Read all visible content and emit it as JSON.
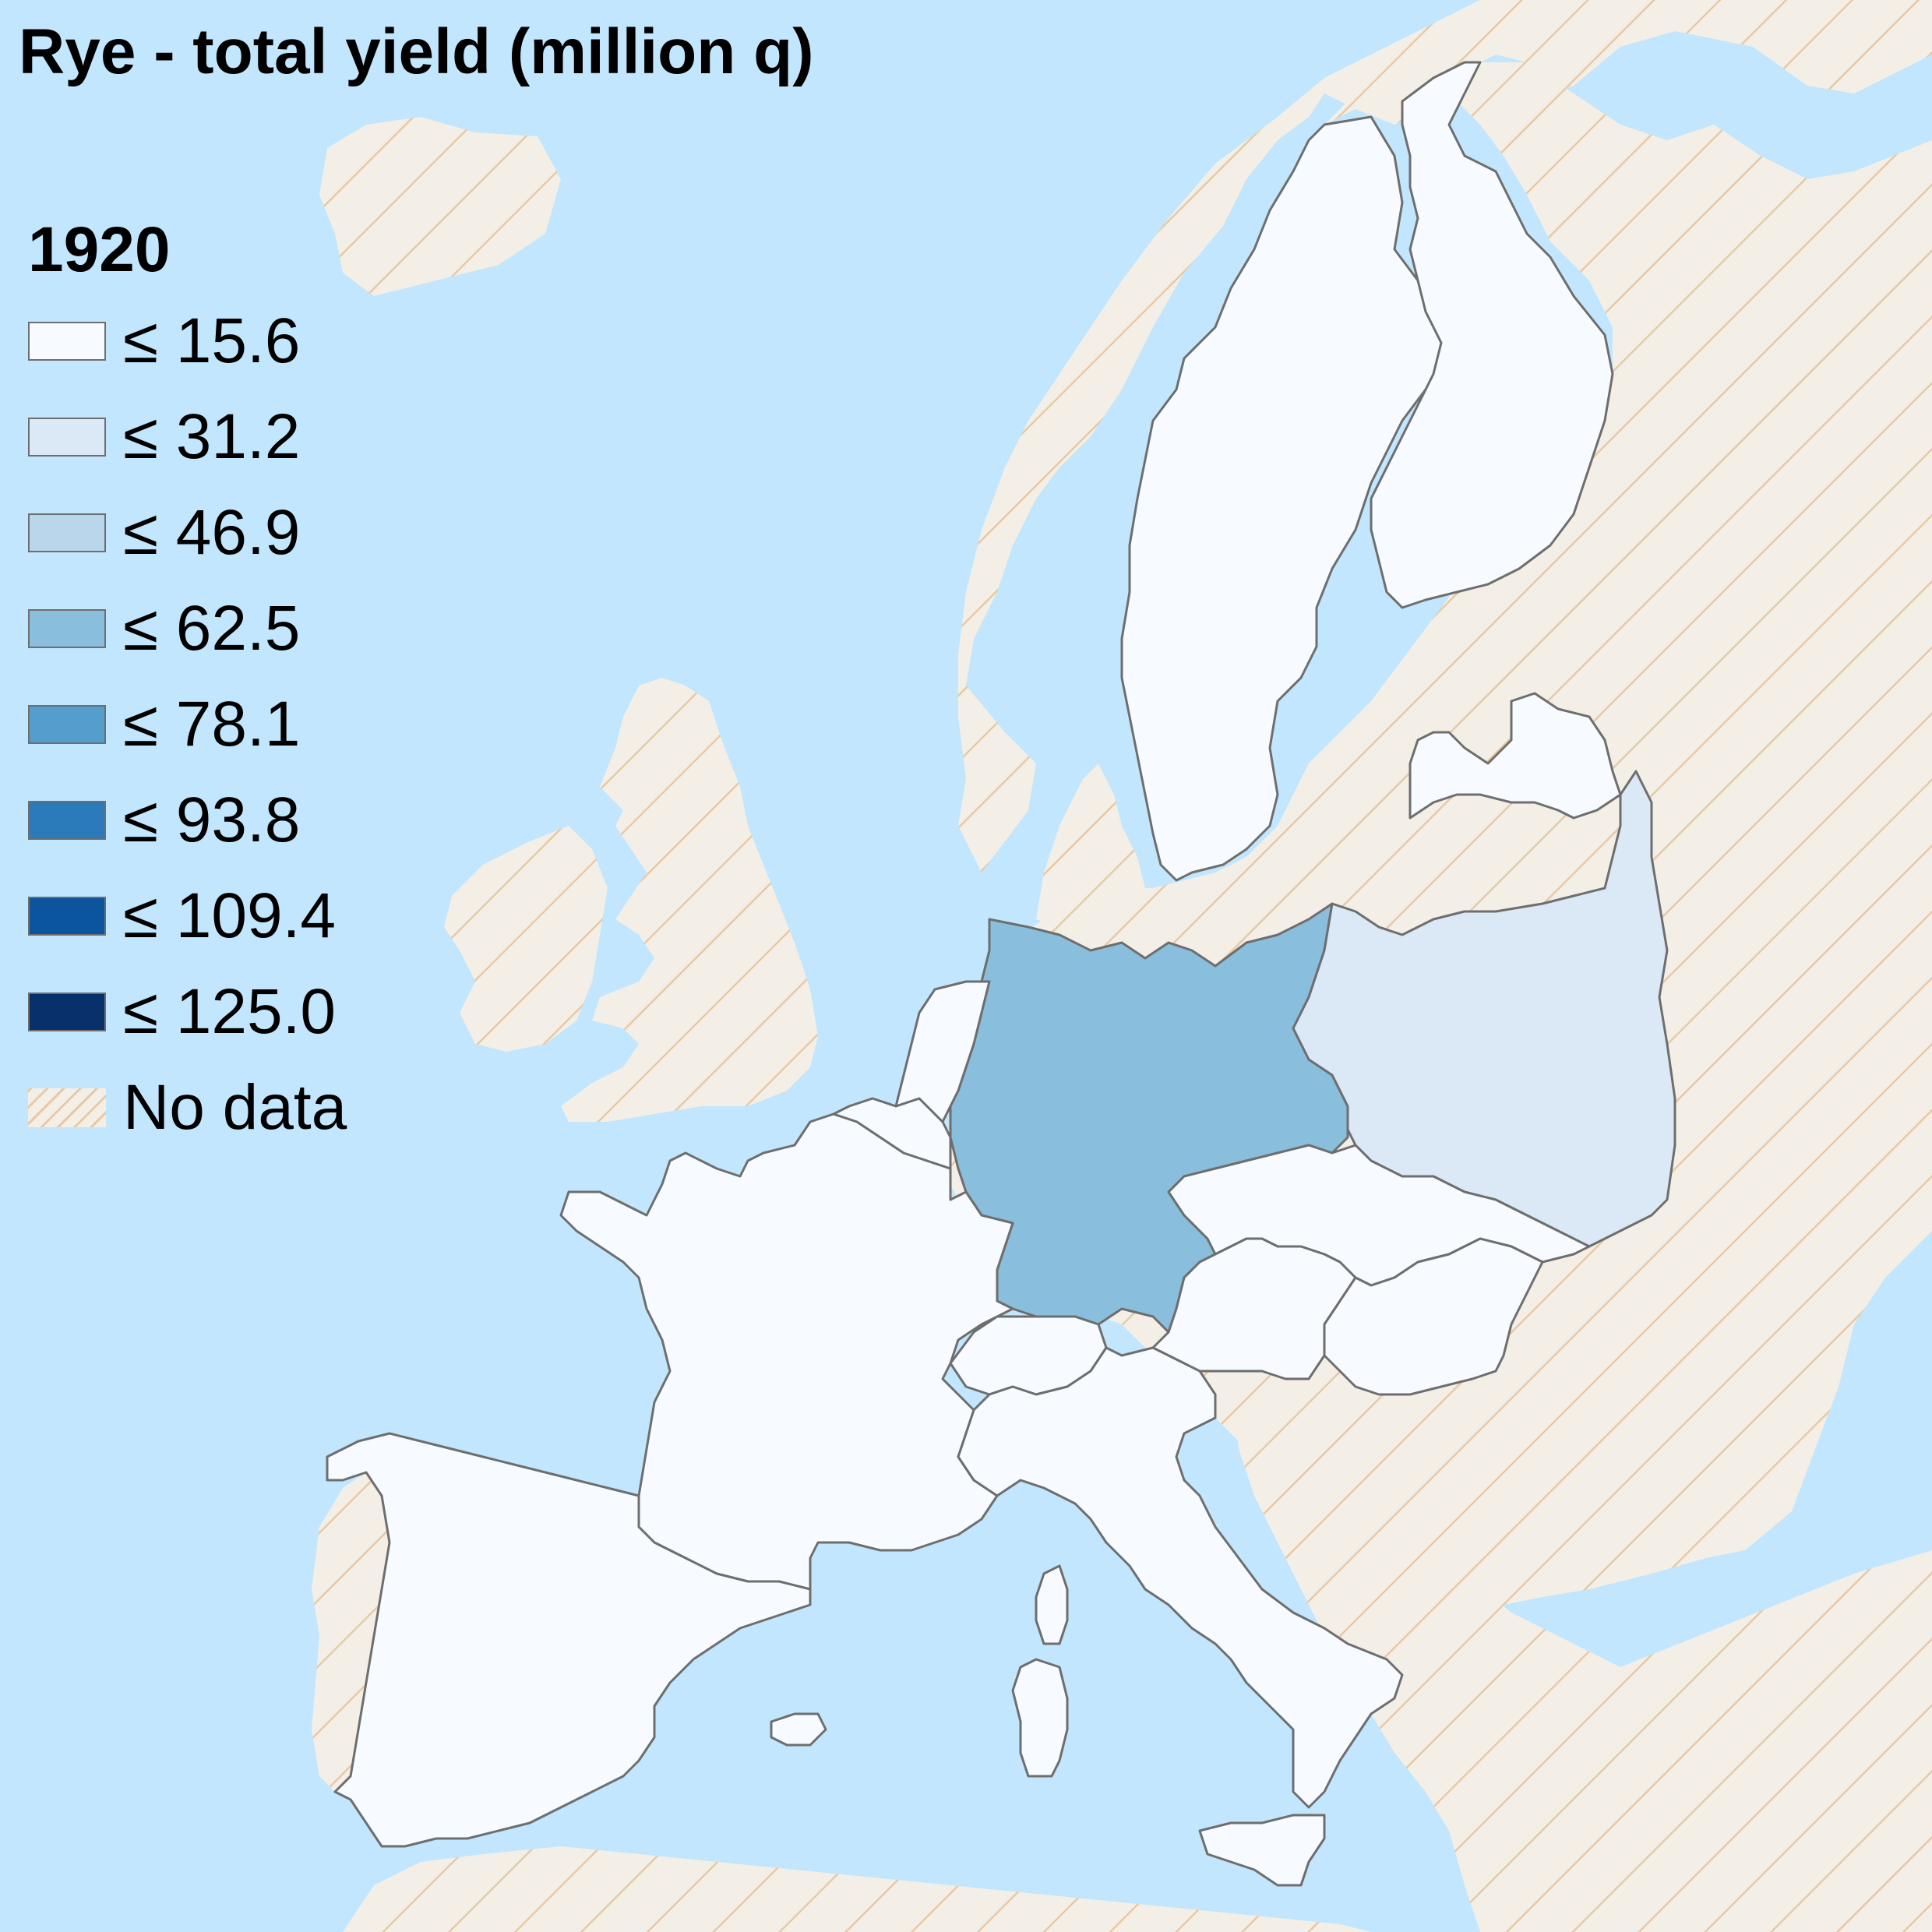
{
  "title": "Rye - total yield (million q)",
  "legend": {
    "year": "1920",
    "items": [
      {
        "label": "≤ 15.6",
        "color": "#f7fbff"
      },
      {
        "label": "≤ 31.2",
        "color": "#dbe9f6"
      },
      {
        "label": "≤ 46.9",
        "color": "#bad6eb"
      },
      {
        "label": "≤ 62.5",
        "color": "#89bedc"
      },
      {
        "label": "≤ 78.1",
        "color": "#539ecd"
      },
      {
        "label": "≤ 93.8",
        "color": "#2b7bba"
      },
      {
        "label": "≤ 109.4",
        "color": "#0b559f"
      },
      {
        "label": "≤ 125.0",
        "color": "#08306b"
      }
    ],
    "no_data": {
      "label": "No data"
    }
  },
  "colors": {
    "sea": "#c1e6fd",
    "no_data_fill": "#f4efe6",
    "no_data_hatch": "#e6c9a6",
    "border": "#6e6e6e"
  },
  "regions": [
    {
      "name": "Germany",
      "value_class": "≤ 62.5"
    },
    {
      "name": "Poland",
      "value_class": "≤ 31.2"
    },
    {
      "name": "France",
      "value_class": "≤ 15.6"
    },
    {
      "name": "Spain",
      "value_class": "≤ 15.6"
    },
    {
      "name": "Italy",
      "value_class": "≤ 15.6"
    },
    {
      "name": "Sweden",
      "value_class": "≤ 15.6"
    },
    {
      "name": "Finland",
      "value_class": "≤ 15.6"
    },
    {
      "name": "Latvia",
      "value_class": "≤ 15.6"
    },
    {
      "name": "Czechoslovakia",
      "value_class": "≤ 15.6"
    },
    {
      "name": "Austria",
      "value_class": "≤ 15.6"
    },
    {
      "name": "Hungary",
      "value_class": "≤ 15.6"
    },
    {
      "name": "Switzerland",
      "value_class": "≤ 15.6"
    },
    {
      "name": "Belgium",
      "value_class": "≤ 15.6"
    },
    {
      "name": "Netherlands",
      "value_class": "≤ 15.6"
    },
    {
      "name": "United Kingdom",
      "value_class": "No data"
    },
    {
      "name": "Ireland",
      "value_class": "No data"
    },
    {
      "name": "Norway",
      "value_class": "No data"
    },
    {
      "name": "Denmark",
      "value_class": "No data"
    },
    {
      "name": "Portugal",
      "value_class": "No data"
    },
    {
      "name": "Iceland",
      "value_class": "No data"
    },
    {
      "name": "Lithuania",
      "value_class": "No data"
    },
    {
      "name": "Estonia",
      "value_class": "No data"
    },
    {
      "name": "Russia",
      "value_class": "No data"
    },
    {
      "name": "Yugoslavia",
      "value_class": "No data"
    },
    {
      "name": "Romania",
      "value_class": "No data"
    },
    {
      "name": "Luxembourg",
      "value_class": "No data"
    }
  ]
}
